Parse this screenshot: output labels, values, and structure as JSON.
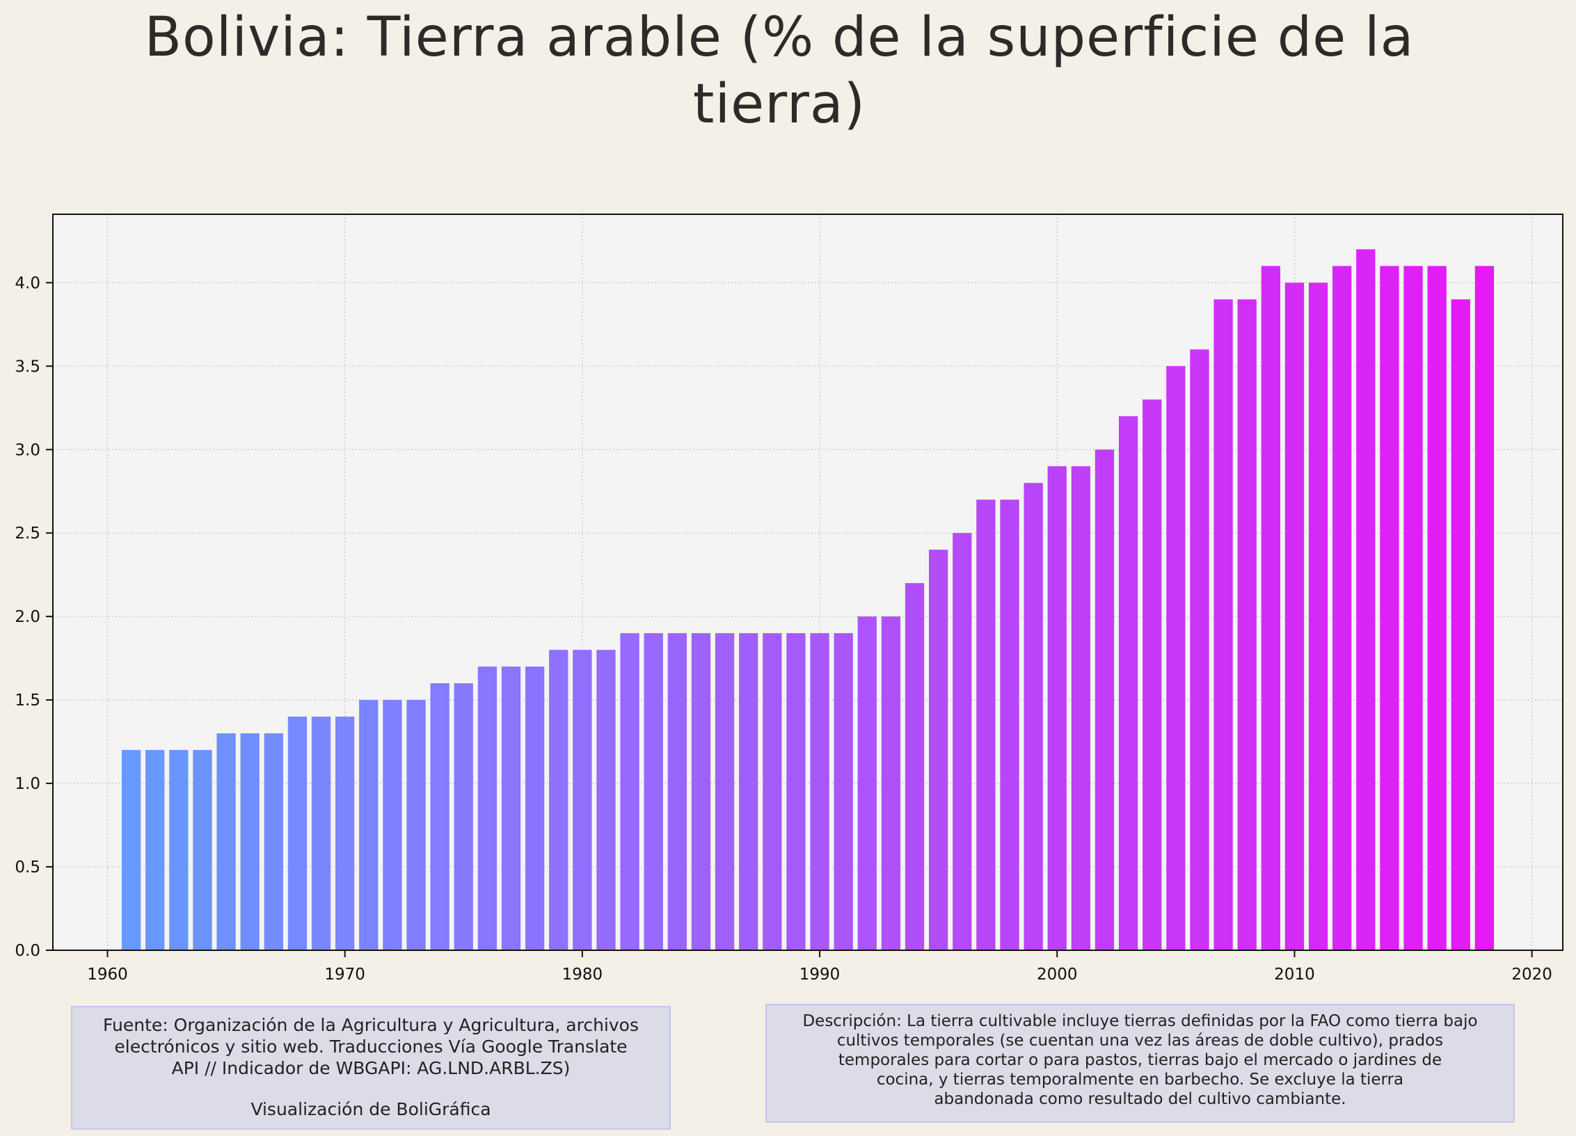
{
  "title": "Bolivia:  Tierra arable (% de la superficie de la tierra)",
  "chart_data": {
    "type": "bar",
    "title": "Bolivia:  Tierra arable (% de la superficie de la tierra)",
    "xlabel": "",
    "ylabel": "",
    "x": [
      1961,
      1962,
      1963,
      1964,
      1965,
      1966,
      1967,
      1968,
      1969,
      1970,
      1971,
      1972,
      1973,
      1974,
      1975,
      1976,
      1977,
      1978,
      1979,
      1980,
      1981,
      1982,
      1983,
      1984,
      1985,
      1986,
      1987,
      1988,
      1989,
      1990,
      1991,
      1992,
      1993,
      1994,
      1995,
      1996,
      1997,
      1998,
      1999,
      2000,
      2001,
      2002,
      2003,
      2004,
      2005,
      2006,
      2007,
      2008,
      2009,
      2010,
      2011,
      2012,
      2013,
      2014,
      2015,
      2016,
      2017,
      2018
    ],
    "values": [
      1.2,
      1.2,
      1.2,
      1.2,
      1.3,
      1.3,
      1.3,
      1.4,
      1.4,
      1.4,
      1.5,
      1.5,
      1.5,
      1.6,
      1.6,
      1.7,
      1.7,
      1.7,
      1.8,
      1.8,
      1.8,
      1.9,
      1.9,
      1.9,
      1.9,
      1.9,
      1.9,
      1.9,
      1.9,
      1.9,
      1.9,
      2.0,
      2.0,
      2.2,
      2.4,
      2.5,
      2.7,
      2.7,
      2.8,
      2.9,
      2.9,
      3.0,
      3.2,
      3.3,
      3.5,
      3.6,
      3.9,
      3.9,
      4.1,
      4.0,
      4.0,
      4.1,
      4.2,
      4.1,
      4.1,
      4.1,
      3.9,
      4.1
    ],
    "xlim": [
      1957.7,
      2021.3
    ],
    "ylim": [
      0,
      4.41
    ],
    "xticks": [
      1960,
      1970,
      1980,
      1990,
      2000,
      2010,
      2020
    ],
    "yticks": [
      0.0,
      0.5,
      1.0,
      1.5,
      2.0,
      2.5,
      3.0,
      3.5,
      4.0
    ],
    "ytick_labels": [
      "0.0",
      "0.5",
      "1.0",
      "1.5",
      "2.0",
      "2.5",
      "3.0",
      "3.5",
      "4.0"
    ],
    "grid": true,
    "colors": {
      "bar_start": "#6699ff",
      "bar_end": "#e619f7",
      "plot_background": "#f4f4f4",
      "page_background": "#f4efe7"
    }
  },
  "notes": {
    "source_lines": [
      "Fuente: Organización de la Agricultura y Agricultura, archivos",
      "electrónicos y sitio web. Traducciones Vía Google Translate",
      "API // Indicador de WBGAPI: AG.LND.ARBL.ZS)"
    ],
    "credit": "Visualización de BoliGráfica",
    "description_lines": [
      "Descripción: La tierra cultivable incluye tierras definidas por la FAO como tierra bajo",
      "cultivos temporales (se cuentan una vez las áreas de doble cultivo), prados",
      "temporales para cortar o para pastos, tierras bajo el mercado o jardines de",
      "cocina, y tierras temporalmente en barbecho. Se excluye la tierra",
      "abandonada como resultado del cultivo cambiante."
    ]
  }
}
